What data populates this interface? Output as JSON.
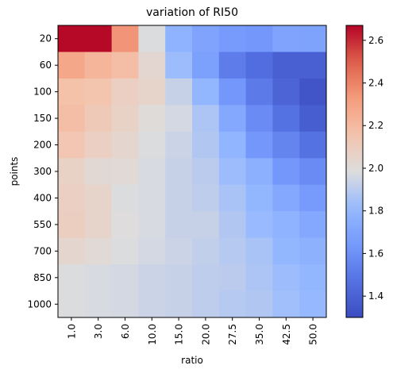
{
  "chart_data": {
    "type": "heatmap",
    "title": "variation of RI50",
    "xlabel": "ratio",
    "ylabel": "points",
    "x_categories": [
      "1.0",
      "3.0",
      "6.0",
      "10.0",
      "15.0",
      "20.0",
      "27.5",
      "35.0",
      "42.5",
      "50.0"
    ],
    "y_categories": [
      "20",
      "60",
      "100",
      "150",
      "200",
      "300",
      "400",
      "550",
      "700",
      "850",
      "1000"
    ],
    "colormap": "coolwarm",
    "vmin": 1.3,
    "vmax": 2.67,
    "colorbar_ticks": [
      "1.4",
      "1.6",
      "1.8",
      "2.0",
      "2.2",
      "2.4",
      "2.6"
    ],
    "values": [
      [
        2.66,
        2.66,
        2.35,
        1.98,
        1.78,
        1.7,
        1.65,
        1.63,
        1.7,
        1.69
      ],
      [
        2.28,
        2.22,
        2.18,
        2.03,
        1.83,
        1.68,
        1.52,
        1.45,
        1.39,
        1.39
      ],
      [
        2.17,
        2.15,
        2.08,
        2.05,
        1.93,
        1.8,
        1.63,
        1.51,
        1.41,
        1.34
      ],
      [
        2.18,
        2.12,
        2.07,
        2.0,
        1.96,
        1.87,
        1.72,
        1.58,
        1.47,
        1.38
      ],
      [
        2.14,
        2.08,
        2.04,
        1.98,
        1.94,
        1.88,
        1.79,
        1.63,
        1.55,
        1.47
      ],
      [
        2.07,
        2.02,
        2.01,
        1.97,
        1.93,
        1.9,
        1.83,
        1.76,
        1.63,
        1.58
      ],
      [
        2.08,
        2.05,
        1.98,
        1.97,
        1.93,
        1.91,
        1.86,
        1.8,
        1.72,
        1.65
      ],
      [
        2.09,
        2.05,
        1.99,
        1.97,
        1.93,
        1.93,
        1.88,
        1.82,
        1.78,
        1.72
      ],
      [
        2.04,
        2.01,
        1.98,
        1.96,
        1.94,
        1.92,
        1.89,
        1.86,
        1.8,
        1.77
      ],
      [
        1.98,
        1.97,
        1.96,
        1.94,
        1.93,
        1.91,
        1.9,
        1.87,
        1.83,
        1.8
      ],
      [
        1.98,
        1.97,
        1.96,
        1.94,
        1.93,
        1.91,
        1.89,
        1.88,
        1.84,
        1.81
      ]
    ]
  }
}
